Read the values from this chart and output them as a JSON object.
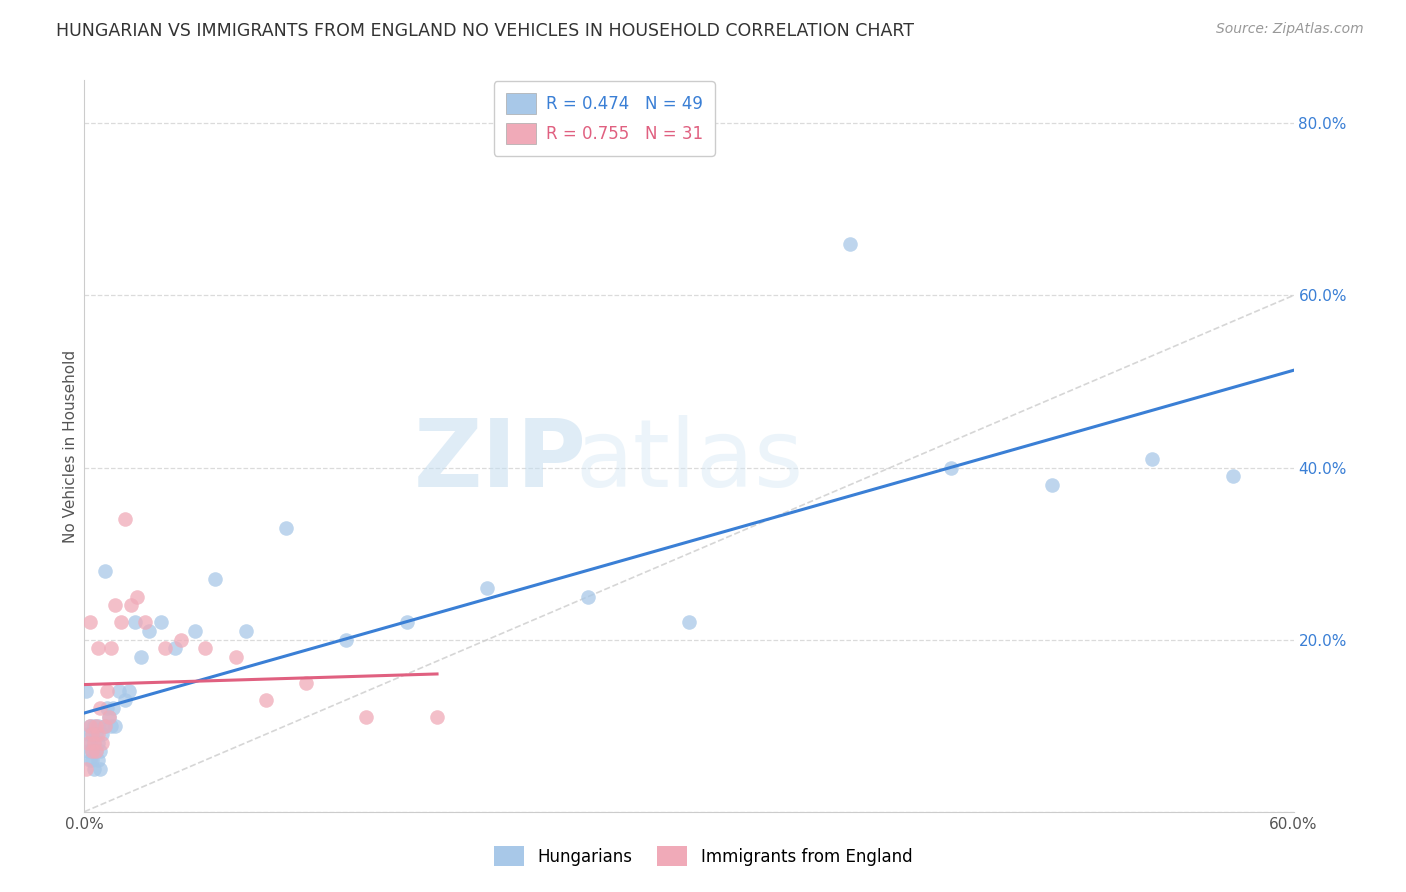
{
  "title": "HUNGARIAN VS IMMIGRANTS FROM ENGLAND NO VEHICLES IN HOUSEHOLD CORRELATION CHART",
  "source": "Source: ZipAtlas.com",
  "ylabel": "No Vehicles in Household",
  "xlim": [
    0.0,
    0.6
  ],
  "ylim": [
    0.0,
    0.85
  ],
  "xticks": [
    0.0,
    0.1,
    0.2,
    0.3,
    0.4,
    0.5,
    0.6
  ],
  "xtick_labels": [
    "0.0%",
    "",
    "",
    "",
    "",
    "",
    "60.0%"
  ],
  "yticks": [
    0.0,
    0.2,
    0.4,
    0.6,
    0.8
  ],
  "ytick_labels": [
    "",
    "20.0%",
    "40.0%",
    "60.0%",
    "80.0%"
  ],
  "background_color": "#ffffff",
  "grid_color": "#d8d8d8",
  "hungarian_color": "#a8c8e8",
  "england_color": "#f0aab8",
  "hungarian_line_color": "#3a7fd5",
  "england_line_color": "#e06080",
  "diagonal_color": "#cccccc",
  "R_hungarian": 0.474,
  "N_hungarian": 49,
  "R_england": 0.755,
  "N_england": 31,
  "hungarian_x": [
    0.001,
    0.002,
    0.002,
    0.003,
    0.003,
    0.003,
    0.004,
    0.004,
    0.004,
    0.005,
    0.005,
    0.005,
    0.006,
    0.006,
    0.007,
    0.007,
    0.007,
    0.008,
    0.008,
    0.009,
    0.01,
    0.01,
    0.011,
    0.012,
    0.013,
    0.014,
    0.015,
    0.017,
    0.02,
    0.022,
    0.025,
    0.028,
    0.032,
    0.038,
    0.045,
    0.055,
    0.065,
    0.08,
    0.1,
    0.13,
    0.16,
    0.2,
    0.25,
    0.3,
    0.38,
    0.43,
    0.48,
    0.53,
    0.57
  ],
  "hungarian_y": [
    0.14,
    0.07,
    0.09,
    0.06,
    0.08,
    0.1,
    0.07,
    0.09,
    0.06,
    0.08,
    0.05,
    0.1,
    0.07,
    0.09,
    0.06,
    0.08,
    0.1,
    0.07,
    0.05,
    0.09,
    0.28,
    0.1,
    0.12,
    0.11,
    0.1,
    0.12,
    0.1,
    0.14,
    0.13,
    0.14,
    0.22,
    0.18,
    0.21,
    0.22,
    0.19,
    0.21,
    0.27,
    0.21,
    0.33,
    0.2,
    0.22,
    0.26,
    0.25,
    0.22,
    0.66,
    0.4,
    0.38,
    0.41,
    0.39
  ],
  "england_x": [
    0.001,
    0.002,
    0.003,
    0.003,
    0.004,
    0.004,
    0.005,
    0.006,
    0.006,
    0.007,
    0.007,
    0.008,
    0.009,
    0.01,
    0.011,
    0.012,
    0.013,
    0.015,
    0.018,
    0.02,
    0.023,
    0.026,
    0.03,
    0.04,
    0.048,
    0.06,
    0.075,
    0.09,
    0.11,
    0.14,
    0.175
  ],
  "england_y": [
    0.05,
    0.08,
    0.1,
    0.22,
    0.07,
    0.09,
    0.08,
    0.07,
    0.1,
    0.09,
    0.19,
    0.12,
    0.08,
    0.1,
    0.14,
    0.11,
    0.19,
    0.24,
    0.22,
    0.34,
    0.24,
    0.25,
    0.22,
    0.19,
    0.2,
    0.19,
    0.18,
    0.13,
    0.15,
    0.11,
    0.11
  ],
  "watermark_zip": "ZIP",
  "watermark_atlas": "atlas",
  "dot_size": 110
}
